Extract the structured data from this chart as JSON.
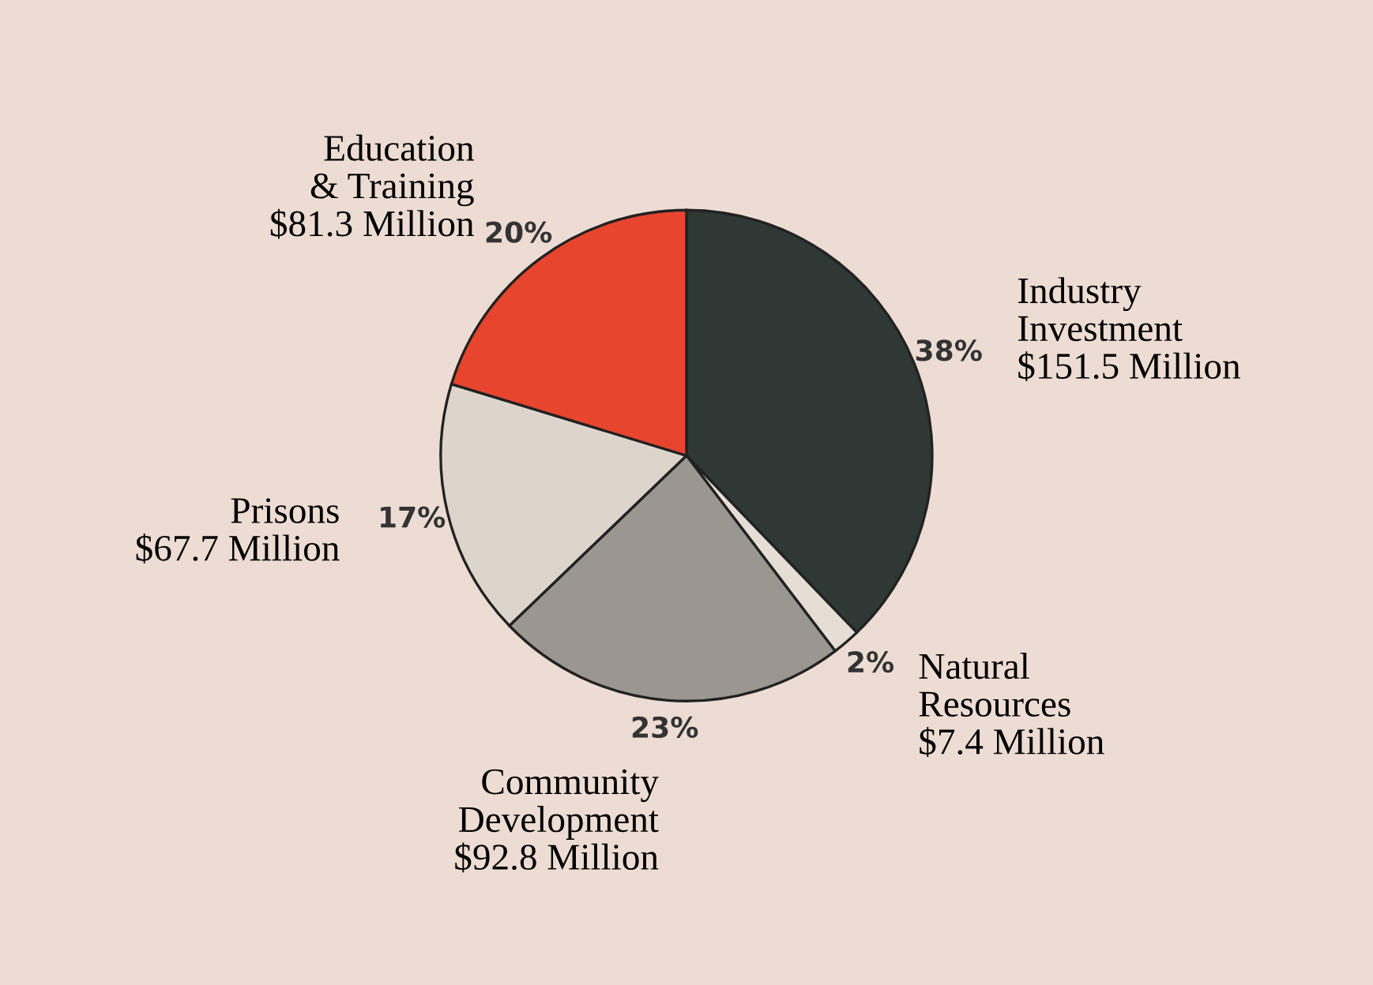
{
  "chart_data": {
    "type": "pie",
    "categories": [
      "Industry\nInvestment",
      "Natural\nResources",
      "Community\nDevelopment",
      "Prisons",
      "Education\n& Training"
    ],
    "values": [
      151.5,
      7.4,
      92.8,
      67.7,
      81.3
    ],
    "value_labels": [
      "$151.5 Million",
      "$7.4 Million",
      "$92.8 Million",
      "$67.7 Million",
      "$81.3 Million"
    ],
    "colors": [
      "#2e3835",
      "#e6ddd5",
      "#9b9690",
      "#ddd5cc",
      "#e8452e"
    ],
    "annotations": [
      "38%",
      "2%",
      "23%",
      "17%",
      "20%"
    ],
    "legend": false
  }
}
